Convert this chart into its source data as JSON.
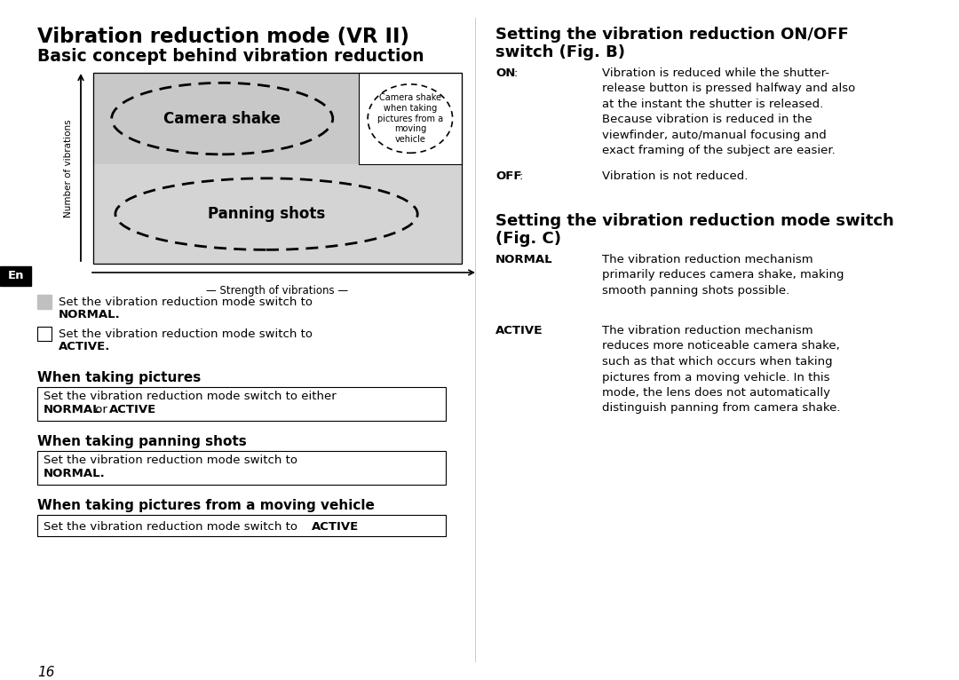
{
  "bg_color": "#ffffff",
  "left_title1": "Vibration reduction mode (VR II)",
  "left_title2": "Basic concept behind vibration reduction",
  "diagram_ylabel": "Number of vibrations",
  "diagram_xlabel": "Strength of vibrations",
  "ellipse1_label": "Camera shake",
  "ellipse2_label": "Panning shots",
  "small_ellipse_label": "Camera shake\nwhen taking\npictures from a\nmoving\nvehicle",
  "en_label": "En",
  "legend_gray_line1": "Set the vibration reduction mode switch to",
  "legend_gray_line2": "NORMAL",
  "legend_white_line1": "Set the vibration reduction mode switch to",
  "legend_white_line2": "ACTIVE",
  "sect1_title": "When taking pictures",
  "sect1_line1": "Set the vibration reduction mode switch to either",
  "sect1_bold1": "NORMAL",
  "sect1_mid": " or ",
  "sect1_bold2": "ACTIVE",
  "sect2_title": "When taking panning shots",
  "sect2_line1": "Set the vibration reduction mode switch to",
  "sect2_bold": "NORMAL",
  "sect3_title": "When taking pictures from a moving vehicle",
  "sect3_line1": "Set the vibration reduction mode switch to ",
  "sect3_bold": "ACTIVE",
  "page_num": "16",
  "right_h1_line1": "Setting the vibration reduction ON/OFF",
  "right_h1_line2": "switch (Fig. B)",
  "on_label": "ON",
  "on_colon": ":",
  "on_text": "Vibration is reduced while the shutter-\nrelease button is pressed halfway and also\nat the instant the shutter is released.\nBecause vibration is reduced in the\nviewfinder, auto/manual focusing and\nexact framing of the subject are easier.",
  "off_label": "OFF",
  "off_colon": ":",
  "off_text": "Vibration is not reduced.",
  "right_h2_line1": "Setting the vibration reduction mode switch",
  "right_h2_line2": "(Fig. C)",
  "normal_label": "NORMAL",
  "normal_colon": ":",
  "normal_text": "The vibration reduction mechanism\nprimarily reduces camera shake, making\nsmooth panning shots possible.",
  "active_label": "ACTIVE",
  "active_colon": ":",
  "active_text": "The vibration reduction mechanism\nreduces more noticeable camera shake,\nsuch as that which occurs when taking\npictures from a moving vehicle. In this\nmode, the lens does not automatically\ndistinguish panning from camera shake.",
  "diag_gray_upper": "#c8c8c8",
  "diag_gray_lower": "#d4d4d4",
  "diag_white": "#ffffff"
}
